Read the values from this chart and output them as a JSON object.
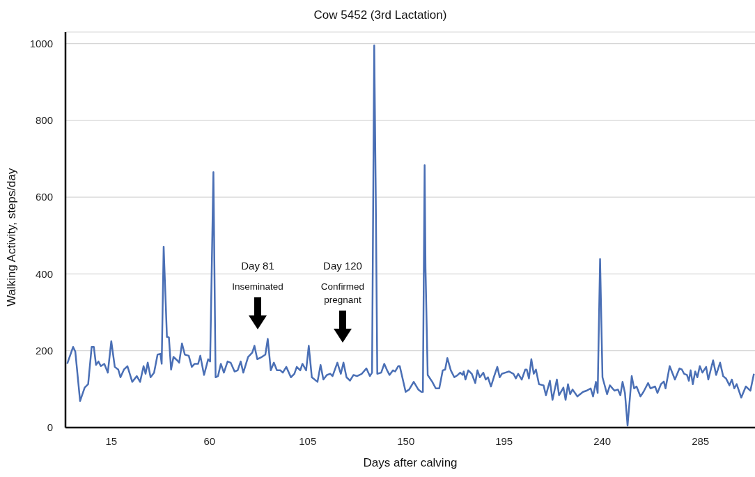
{
  "chart_data": {
    "type": "line",
    "title": "Cow 5452 (3rd Lactation)",
    "xlabel": "Days after calving",
    "ylabel": "Walking Activity, steps/day",
    "xlim": [
      -6,
      310
    ],
    "xticks": [
      15,
      60,
      105,
      150,
      195,
      240,
      285
    ],
    "ylim": [
      0,
      1030
    ],
    "yticks": [
      0,
      200,
      400,
      600,
      800,
      1000
    ],
    "grid": "y",
    "legend": false,
    "annotations": [
      "Day 81",
      "Inseminated",
      "Day 120",
      "Confirmed pregnant"
    ],
    "series": [
      {
        "color": "#4a6fb5",
        "x": [
          -5.2,
          -2.5,
          -1.5,
          0.7,
          2.8,
          4.4,
          6.0,
          7.0,
          8.0,
          9.1,
          10.2,
          11.8,
          13.4,
          15.0,
          16.6,
          18.2,
          19.2,
          20.8,
          22.4,
          24.6,
          26.7,
          28.2,
          29.8,
          30.7,
          31.7,
          33.0,
          34.6,
          36.2,
          37.5,
          38.1,
          39.0,
          40.5,
          41.4,
          42.4,
          43.5,
          45.2,
          46.1,
          47.4,
          48.7,
          50.5,
          51.9,
          53.2,
          54.8,
          55.8,
          57.5,
          59.4,
          60.3,
          61.8,
          62.8,
          63.9,
          65.2,
          66.6,
          68.3,
          69.7,
          71.5,
          72.9,
          74.3,
          75.5,
          77.7,
          79.6,
          80.6,
          81.9,
          84.0,
          85.6,
          86.7,
          88.1,
          89.5,
          90.9,
          92.5,
          93.6,
          95.2,
          97.3,
          98.9,
          100.0,
          101.6,
          102.6,
          104.3,
          105.5,
          106.9,
          109.5,
          110.9,
          112.2,
          113.8,
          115.4,
          116.4,
          118.6,
          120.2,
          121.4,
          122.8,
          124.4,
          126.0,
          127.6,
          129.8,
          131.9,
          133.5,
          134.5,
          135.5,
          136.2,
          136.9,
          138.7,
          140.1,
          141.4,
          142.5,
          144.1,
          145.1,
          146.5,
          147.2,
          149.9,
          151.5,
          153.6,
          155.7,
          157.1,
          157.8,
          158.6,
          159.0,
          160.0,
          162.1,
          163.7,
          165.3,
          166.9,
          168.0,
          169.0,
          170.6,
          172.2,
          173.8,
          174.9,
          176.0,
          176.5,
          177.3,
          178.6,
          180.2,
          181.8,
          182.8,
          183.9,
          185.5,
          186.6,
          187.6,
          189.0,
          190.3,
          191.9,
          193.0,
          194.0,
          195.6,
          197.2,
          199.3,
          200.4,
          201.5,
          203.1,
          204.7,
          205.4,
          206.4,
          207.5,
          208.6,
          209.6,
          211.0,
          213.1,
          214.2,
          216.0,
          217.2,
          219.2,
          220.2,
          222.2,
          223.2,
          224.3,
          225.3,
          226.4,
          228.6,
          231.2,
          232.8,
          234.7,
          235.8,
          237.1,
          237.9,
          239.0,
          240.1,
          242.2,
          243.5,
          245.6,
          247.2,
          248.3,
          249.3,
          250.4,
          251.6,
          253.5,
          254.6,
          255.7,
          257.5,
          258.9,
          261.0,
          262.1,
          264.2,
          265.3,
          266.9,
          268.2,
          269.0,
          270.9,
          273.3,
          275.4,
          276.5,
          277.5,
          278.8,
          279.7,
          280.5,
          281.5,
          282.6,
          283.6,
          284.7,
          285.9,
          287.6,
          288.6,
          290.8,
          292.2,
          294.0,
          295.4,
          296.7,
          298.3,
          299.4,
          300.5,
          301.6,
          303.7,
          305.8,
          307.9,
          309.5
        ],
        "values": [
          166,
          210,
          198,
          69,
          104,
          113,
          210,
          210,
          163,
          172,
          160,
          166,
          143,
          225,
          158,
          151,
          131,
          151,
          160,
          119,
          134,
          119,
          160,
          140,
          169,
          131,
          143,
          190,
          192,
          166,
          471,
          236,
          235,
          151,
          184,
          175,
          169,
          219,
          190,
          187,
          158,
          166,
          166,
          187,
          137,
          178,
          172,
          665,
          131,
          134,
          166,
          143,
          172,
          169,
          146,
          149,
          172,
          143,
          184,
          195,
          213,
          178,
          184,
          190,
          231,
          149,
          169,
          149,
          149,
          143,
          158,
          131,
          140,
          158,
          149,
          166,
          149,
          213,
          131,
          119,
          163,
          125,
          137,
          140,
          134,
          169,
          140,
          169,
          131,
          122,
          137,
          134,
          140,
          154,
          134,
          143,
          995,
          605,
          140,
          143,
          166,
          149,
          137,
          149,
          146,
          160,
          160,
          93,
          99,
          119,
          99,
          93,
          93,
          683,
          415,
          137,
          119,
          102,
          102,
          149,
          151,
          181,
          149,
          131,
          137,
          143,
          137,
          146,
          125,
          149,
          140,
          116,
          149,
          131,
          143,
          125,
          131,
          107,
          131,
          158,
          131,
          140,
          143,
          146,
          140,
          128,
          140,
          125,
          151,
          151,
          128,
          178,
          140,
          151,
          113,
          110,
          84,
          122,
          72,
          125,
          84,
          104,
          72,
          113,
          87,
          99,
          81,
          93,
          96,
          102,
          81,
          119,
          90,
          439,
          131,
          87,
          110,
          96,
          99,
          84,
          119,
          90,
          5,
          134,
          102,
          107,
          81,
          93,
          116,
          102,
          107,
          90,
          113,
          120,
          102,
          160,
          125,
          154,
          151,
          140,
          137,
          122,
          149,
          113,
          146,
          131,
          160,
          143,
          158,
          125,
          175,
          137,
          169,
          134,
          128,
          110,
          125,
          102,
          113,
          78,
          107,
          96,
          140
        ]
      }
    ]
  }
}
